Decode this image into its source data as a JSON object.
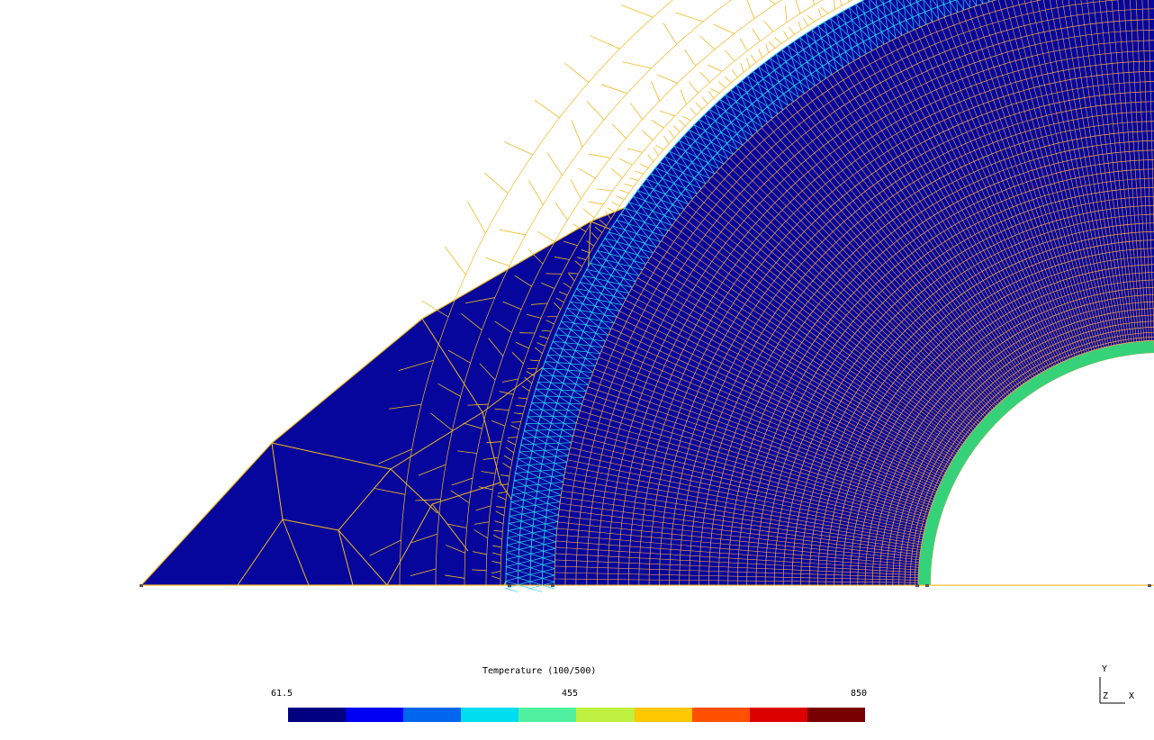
{
  "viewer": {
    "legend": {
      "title": "Temperature (100/500)",
      "min": "61.5",
      "mid": "455",
      "max": "850",
      "colors": [
        "#000080",
        "#0000f2",
        "#0066ee",
        "#00dcf0",
        "#50f0a0",
        "#c0f040",
        "#ffc800",
        "#ff5000",
        "#dc0000",
        "#780000"
      ]
    },
    "axes": {
      "y": "Y",
      "z": "Z",
      "x": "X"
    },
    "palette": {
      "outer_fill": "#06069c",
      "edge_outer": "#f2b81f",
      "edge_tri": "#2ad0ee",
      "edge_fine": "#f2a24a",
      "band_green": "#36d27a"
    }
  }
}
